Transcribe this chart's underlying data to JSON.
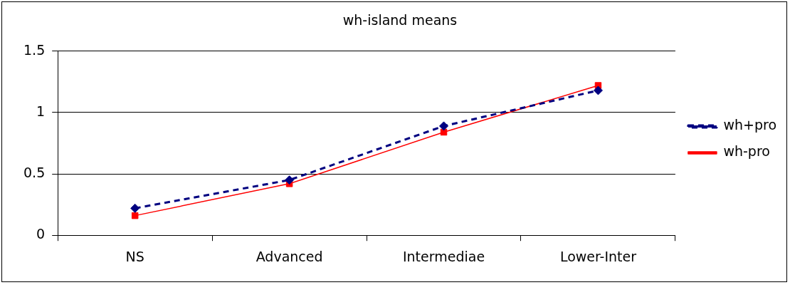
{
  "chart_data": {
    "type": "line",
    "title": "wh-island means",
    "categories": [
      "NS",
      "Advanced",
      "Intermediae",
      "Lower-Inter"
    ],
    "series": [
      {
        "name": "wh+pro",
        "color": "#000080",
        "values": [
          0.22,
          0.45,
          0.89,
          1.18
        ],
        "marker": "diamond",
        "line_style": "dashed"
      },
      {
        "name": "wh-pro",
        "color": "#ff0000",
        "values": [
          0.16,
          0.42,
          0.84,
          1.22
        ],
        "marker": "square",
        "line_style": "solid"
      }
    ],
    "ylim": [
      0,
      1.5
    ],
    "yticks": [
      0,
      0.5,
      1,
      1.5
    ],
    "grid": "y",
    "legend": "right"
  }
}
